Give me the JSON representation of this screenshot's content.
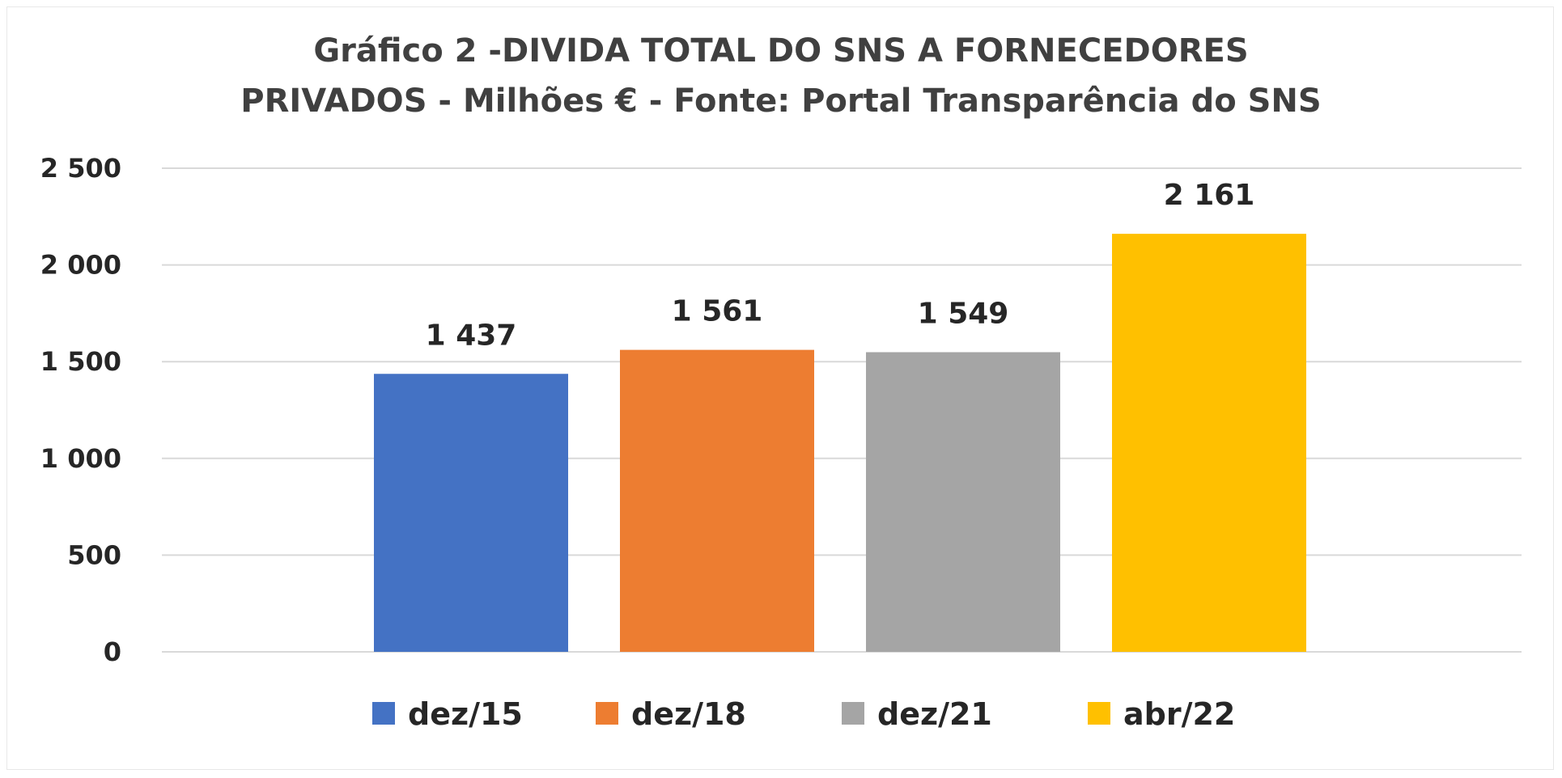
{
  "chart_data": {
    "type": "bar",
    "title_lines": [
      "Gráfico 2 -DIVIDA TOTAL DO SNS A FORNECEDORES",
      "PRIVADOS - Milhões € - Fonte: Portal Transparência  do SNS"
    ],
    "categories": [
      "dez/15",
      "dez/18",
      "dez/21",
      "abr/22"
    ],
    "values": [
      1437,
      1561,
      1549,
      2161
    ],
    "value_labels": [
      "1 437",
      "1 561",
      "1 549",
      "2 161"
    ],
    "colors": [
      "#4472C4",
      "#ED7D31",
      "#A5A5A5",
      "#FFC000"
    ],
    "yticks": [
      0,
      500,
      1000,
      1500,
      2000,
      2500
    ],
    "ytick_labels": [
      "0",
      "500",
      "1 000",
      "1 500",
      "2 000",
      "2 500"
    ],
    "ylim": [
      0,
      2500
    ],
    "xlabel": "",
    "ylabel": "",
    "grid": true,
    "legend_position": "bottom",
    "legend": [
      "dez/15",
      "dez/18",
      "dez/21",
      "abr/22"
    ]
  }
}
